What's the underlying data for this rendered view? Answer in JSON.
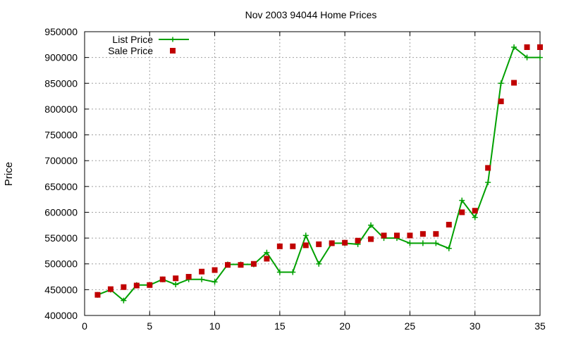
{
  "chart_data": {
    "type": "line",
    "title": "Nov 2003 94044 Home Prices",
    "xlabel": "",
    "ylabel": "Price",
    "xlim": [
      0,
      35
    ],
    "ylim": [
      400000,
      950000
    ],
    "xticks": [
      0,
      5,
      10,
      15,
      20,
      25,
      30,
      35
    ],
    "yticks": [
      400000,
      450000,
      500000,
      550000,
      600000,
      650000,
      700000,
      750000,
      800000,
      850000,
      900000,
      950000
    ],
    "grid": true,
    "legend_position": "top-left",
    "series": [
      {
        "name": "List Price",
        "style": "line-with-plus-markers",
        "color": "#00a000",
        "x": [
          1,
          2,
          3,
          4,
          5,
          6,
          7,
          8,
          9,
          10,
          11,
          12,
          13,
          14,
          15,
          16,
          17,
          18,
          19,
          20,
          21,
          22,
          23,
          24,
          25,
          26,
          27,
          28,
          29,
          30,
          31,
          32,
          33,
          34,
          35
        ],
        "y": [
          440000,
          450000,
          429000,
          459000,
          459000,
          470000,
          460000,
          470000,
          470000,
          465000,
          499000,
          499000,
          499000,
          522000,
          484000,
          484000,
          555000,
          500000,
          540000,
          540000,
          538000,
          575000,
          550000,
          550000,
          540000,
          540000,
          540000,
          530000,
          623000,
          590000,
          658000,
          850000,
          920000,
          900000,
          900000
        ]
      },
      {
        "name": "Sale Price",
        "style": "square-markers",
        "color": "#c00000",
        "x": [
          1,
          2,
          3,
          4,
          5,
          6,
          7,
          8,
          9,
          10,
          11,
          12,
          13,
          14,
          15,
          16,
          17,
          18,
          19,
          20,
          21,
          22,
          23,
          24,
          25,
          26,
          27,
          28,
          29,
          30,
          31,
          32,
          33,
          34,
          35
        ],
        "y": [
          440000,
          451000,
          455000,
          458000,
          459000,
          470000,
          472000,
          475000,
          485000,
          488000,
          498000,
          498000,
          500000,
          510000,
          534000,
          534000,
          536000,
          538000,
          540000,
          541000,
          545000,
          548000,
          555000,
          555000,
          555000,
          558000,
          558000,
          576000,
          600000,
          603000,
          686000,
          815000,
          851000,
          920000,
          920000
        ]
      }
    ]
  }
}
